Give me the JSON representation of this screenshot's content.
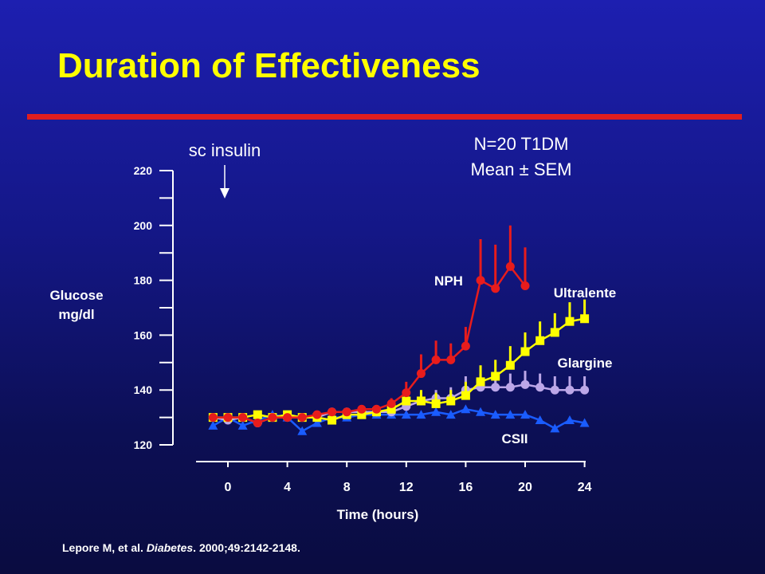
{
  "slide": {
    "title": "Duration of Effectiveness",
    "sc_insulin_label": "sc insulin",
    "study_info_line1": "N=20 T1DM",
    "study_info_line2": "Mean ± SEM",
    "citation_authors": "Lepore M, et al. ",
    "citation_journal": "Diabetes",
    "citation_rest": ". 2000;49:2142-2148.",
    "accent_color": "#e01e1e",
    "title_color": "#ffff00"
  },
  "chart_data": {
    "type": "line",
    "title": "",
    "xlabel": "Time (hours)",
    "ylabel_line1": "Glucose",
    "ylabel_line2": "mg/dl",
    "xlim": [
      -1,
      24
    ],
    "ylim": [
      120,
      220
    ],
    "xticks": [
      0,
      4,
      8,
      12,
      16,
      20,
      24
    ],
    "yticks": [
      120,
      140,
      160,
      180,
      200,
      220
    ],
    "grid": false,
    "series": [
      {
        "name": "CSII",
        "color": "#1a5cff",
        "marker": "triangle",
        "x": [
          -1,
          0,
          1,
          2,
          3,
          4,
          5,
          6,
          7,
          8,
          9,
          10,
          11,
          12,
          13,
          14,
          15,
          16,
          17,
          18,
          19,
          20,
          21,
          22,
          23,
          24
        ],
        "y": [
          127,
          130,
          127,
          129,
          131,
          130,
          125,
          128,
          130,
          130,
          131,
          131,
          131,
          131,
          131,
          132,
          131,
          133,
          132,
          131,
          131,
          131,
          129,
          126,
          129,
          128
        ],
        "sem": [
          0,
          0,
          0,
          0,
          0,
          0,
          0,
          0,
          0,
          0,
          0,
          0,
          0,
          0,
          0,
          0,
          0,
          0,
          0,
          0,
          0,
          0,
          0,
          0,
          0,
          0
        ]
      },
      {
        "name": "Glargine",
        "color": "#bca7e8",
        "marker": "circle",
        "x": [
          -1,
          0,
          1,
          2,
          3,
          4,
          5,
          6,
          7,
          8,
          9,
          10,
          11,
          12,
          13,
          14,
          15,
          16,
          17,
          18,
          19,
          20,
          21,
          22,
          23,
          24
        ],
        "y": [
          130,
          129,
          130,
          128,
          130,
          130,
          130,
          130,
          132,
          132,
          132,
          132,
          132,
          134,
          136,
          137,
          137,
          140,
          141,
          141,
          141,
          142,
          141,
          140,
          140,
          140
        ],
        "sem": [
          0,
          0,
          0,
          0,
          0,
          0,
          0,
          0,
          0,
          0,
          0,
          0,
          1,
          2,
          3,
          3,
          4,
          5,
          5,
          5,
          5,
          5,
          5,
          5,
          5,
          5
        ]
      },
      {
        "name": "Ultralente",
        "color": "#ffff00",
        "marker": "square",
        "x": [
          -1,
          0,
          1,
          2,
          3,
          4,
          5,
          6,
          7,
          8,
          9,
          10,
          11,
          12,
          13,
          14,
          15,
          16,
          17,
          18,
          19,
          20,
          21,
          22,
          23,
          24
        ],
        "y": [
          130,
          130,
          130,
          131,
          130,
          131,
          130,
          130,
          129,
          131,
          131,
          132,
          133,
          136,
          136,
          135,
          136,
          138,
          143,
          145,
          149,
          154,
          158,
          161,
          165,
          166
        ],
        "sem": [
          0,
          0,
          0,
          0,
          0,
          0,
          0,
          0,
          0,
          0,
          0,
          0,
          0,
          3,
          4,
          4,
          4,
          5,
          6,
          6,
          7,
          7,
          7,
          7,
          7,
          7
        ]
      },
      {
        "name": "NPH",
        "color": "#e81c1c",
        "marker": "circle",
        "x": [
          -1,
          0,
          1,
          2,
          3,
          4,
          5,
          6,
          7,
          8,
          9,
          10,
          11,
          12,
          13,
          14,
          15,
          16,
          17,
          18,
          19,
          20
        ],
        "y": [
          130,
          130,
          130,
          128,
          130,
          130,
          130,
          131,
          132,
          132,
          133,
          133,
          135,
          139,
          146,
          151,
          151,
          156,
          180,
          177,
          185,
          178
        ],
        "sem": [
          0,
          0,
          0,
          0,
          0,
          0,
          0,
          0,
          0,
          0,
          0,
          0,
          2,
          4,
          7,
          7,
          6,
          7,
          15,
          16,
          15,
          14
        ]
      }
    ]
  }
}
